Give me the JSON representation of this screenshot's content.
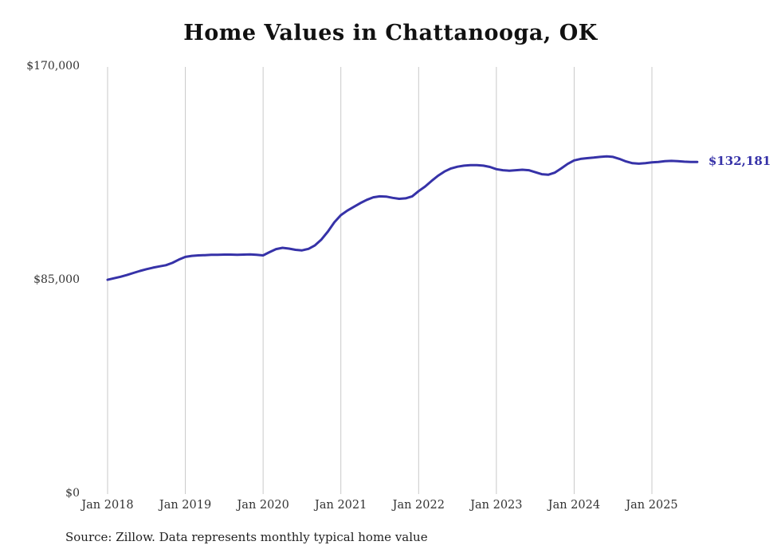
{
  "title": "Home Values in Chattanooga, OK",
  "source_note": "Source: Zillow. Data represents monthly typical home value",
  "end_label": "$132,181",
  "colors": {
    "line": "#3632a8",
    "grid": "#c9c9c9",
    "title_text": "#111111",
    "tick_text": "#333333",
    "source_text": "#222222"
  },
  "chart_data": {
    "type": "line",
    "title": "Home Values in Chattanooga, OK",
    "xlabel": "",
    "ylabel": "",
    "ylim": [
      0,
      170000
    ],
    "grid": "vertical-only",
    "legend": "none",
    "x_tick_labels": [
      "Jan 2018",
      "Jan 2019",
      "Jan 2020",
      "Jan 2021",
      "Jan 2022",
      "Jan 2023",
      "Jan 2024",
      "Jan 2025"
    ],
    "x_tick_every_months": 12,
    "y_ticks": [
      {
        "label": "$170,000",
        "value": 170000
      },
      {
        "label": "$85,000",
        "value": 85000
      },
      {
        "label": "$0",
        "value": 0
      }
    ],
    "series": [
      {
        "name": "Typical home value",
        "start_month": "Jan 2018",
        "frequency": "monthly",
        "values": [
          85300,
          85900,
          86500,
          87200,
          88000,
          88800,
          89500,
          90100,
          90600,
          91100,
          92000,
          93300,
          94400,
          94800,
          95000,
          95100,
          95200,
          95200,
          95300,
          95300,
          95200,
          95300,
          95400,
          95200,
          95000,
          96300,
          97500,
          98000,
          97700,
          97200,
          97000,
          97600,
          99000,
          101300,
          104500,
          108200,
          111000,
          112800,
          114300,
          115800,
          117100,
          118100,
          118500,
          118400,
          117900,
          117500,
          117700,
          118500,
          120600,
          122400,
          124600,
          126700,
          128400,
          129600,
          130300,
          130700,
          130900,
          130900,
          130700,
          130200,
          129300,
          128900,
          128700,
          128900,
          129100,
          128900,
          128100,
          127300,
          127100,
          127900,
          129600,
          131400,
          132800,
          133400,
          133700,
          133900,
          134200,
          134400,
          134200,
          133400,
          132400,
          131700,
          131500,
          131700,
          132000,
          132200,
          132500,
          132600,
          132500,
          132300,
          132200,
          132181
        ]
      }
    ],
    "last_value": 132181
  }
}
